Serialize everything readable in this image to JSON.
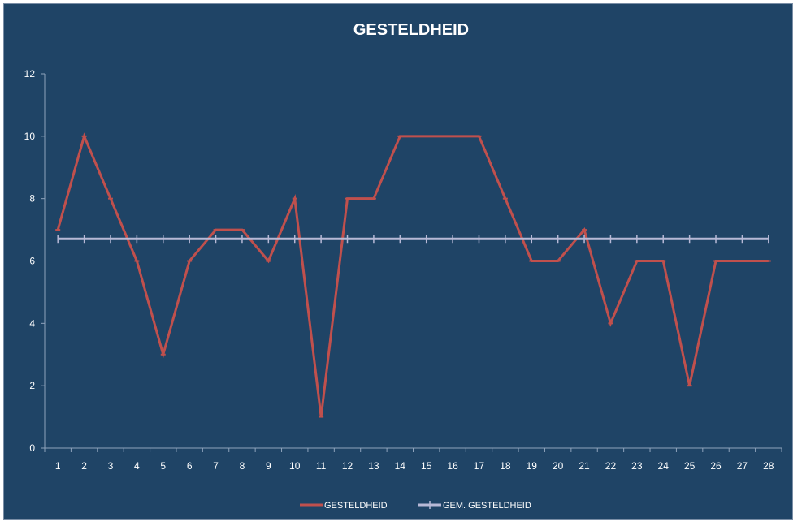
{
  "chart_data": {
    "type": "line",
    "title": "GESTELDHEID",
    "xlabel": "",
    "ylabel": "",
    "categories": [
      "1",
      "2",
      "3",
      "4",
      "5",
      "6",
      "7",
      "8",
      "9",
      "10",
      "11",
      "12",
      "13",
      "14",
      "15",
      "16",
      "17",
      "18",
      "19",
      "20",
      "21",
      "22",
      "23",
      "24",
      "25",
      "26",
      "27",
      "28"
    ],
    "ylim": [
      0,
      12
    ],
    "yticks": [
      0,
      2,
      4,
      6,
      8,
      10,
      12
    ],
    "grid": false,
    "legend_position": "bottom",
    "series": [
      {
        "name": "GESTELDHEID",
        "color": "#c0504d",
        "values": [
          7,
          10,
          8,
          6,
          3,
          6,
          7,
          7,
          6,
          8,
          1,
          8,
          8,
          10,
          10,
          10,
          10,
          8,
          6,
          6,
          7,
          4,
          6,
          6,
          2,
          6,
          6,
          6
        ]
      },
      {
        "name": "GEM. GESTELDHEID",
        "color": "#b7b9d6",
        "values": [
          6.71,
          6.71,
          6.71,
          6.71,
          6.71,
          6.71,
          6.71,
          6.71,
          6.71,
          6.71,
          6.71,
          6.71,
          6.71,
          6.71,
          6.71,
          6.71,
          6.71,
          6.71,
          6.71,
          6.71,
          6.71,
          6.71,
          6.71,
          6.71,
          6.71,
          6.71,
          6.71,
          6.71
        ]
      }
    ]
  }
}
